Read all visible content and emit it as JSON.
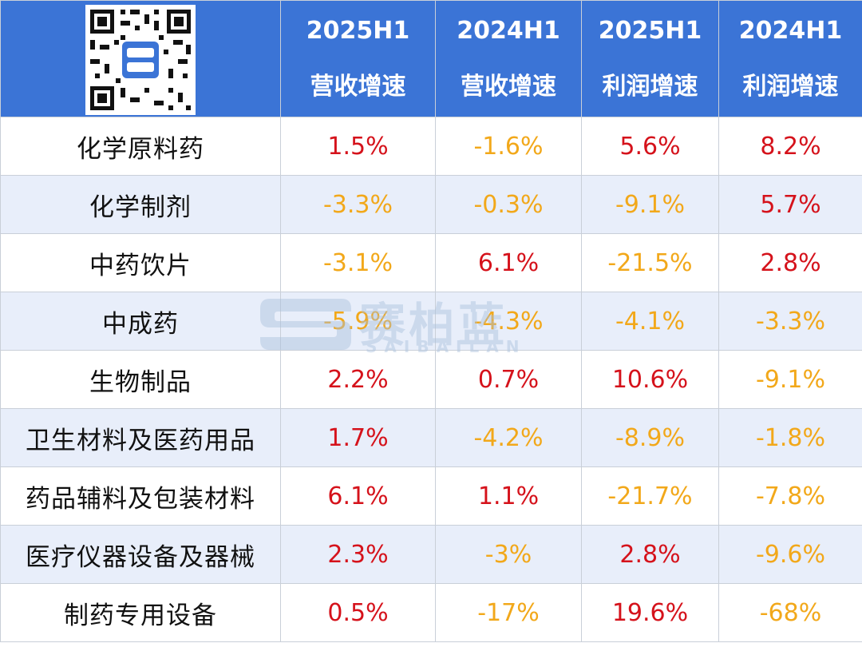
{
  "chart_data": {
    "type": "table",
    "columns": [
      {
        "period": "2025H1",
        "metric": "营收增速"
      },
      {
        "period": "2024H1",
        "metric": "营收增速"
      },
      {
        "period": "2025H1",
        "metric": "利润增速"
      },
      {
        "period": "2024H1",
        "metric": "利润增速"
      }
    ],
    "rows": [
      {
        "category": "化学原料药",
        "values": [
          "1.5%",
          "-1.6%",
          "5.6%",
          "8.2%"
        ]
      },
      {
        "category": "化学制剂",
        "values": [
          "-3.3%",
          "-0.3%",
          "-9.1%",
          "5.7%"
        ]
      },
      {
        "category": "中药饮片",
        "values": [
          "-3.1%",
          "6.1%",
          "-21.5%",
          "2.8%"
        ]
      },
      {
        "category": "中成药",
        "values": [
          "-5.9%",
          "-4.3%",
          "-4.1%",
          "-3.3%"
        ]
      },
      {
        "category": "生物制品",
        "values": [
          "2.2%",
          "0.7%",
          "10.6%",
          "-9.1%"
        ]
      },
      {
        "category": "卫生材料及医药用品",
        "values": [
          "1.7%",
          "-4.2%",
          "-8.9%",
          "-1.8%"
        ]
      },
      {
        "category": "药品辅料及包装材料",
        "values": [
          "6.1%",
          "1.1%",
          "-21.7%",
          "-7.8%"
        ]
      },
      {
        "category": "医疗仪器设备及器械",
        "values": [
          "2.3%",
          "-3%",
          "2.8%",
          "-9.6%"
        ]
      },
      {
        "category": "制药专用设备",
        "values": [
          "0.5%",
          "-17%",
          "19.6%",
          "-68%"
        ]
      }
    ]
  },
  "colors": {
    "header_bg": "#3b74d6",
    "positive": "#d5121b",
    "negative": "#f2a81a",
    "stripe": "#e8eefa"
  },
  "watermark": {
    "text": "赛柏蓝",
    "sub": "SAIBAILAN"
  }
}
